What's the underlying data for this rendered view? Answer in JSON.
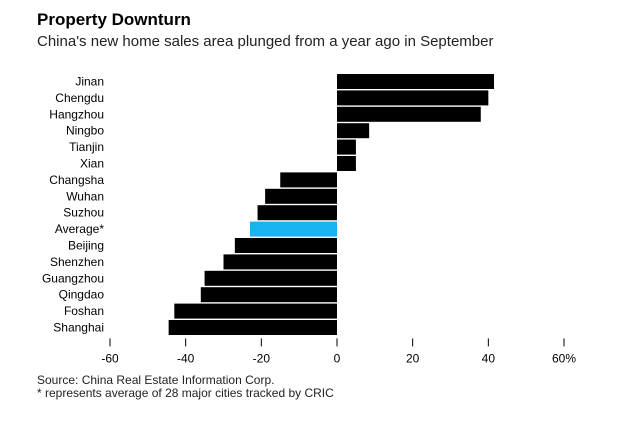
{
  "chart_data": {
    "type": "bar",
    "orientation": "horizontal",
    "title": "Property Downturn",
    "subtitle": "China's new home sales area plunged from a year ago in September",
    "categories": [
      "Jinan",
      "Chengdu",
      "Hangzhou",
      "Ningbo",
      "Tianjin",
      "Xian",
      "Changsha",
      "Wuhan",
      "Suzhou",
      "Average*",
      "Beijing",
      "Shenzhen",
      "Guangzhou",
      "Qingdao",
      "Foshan",
      "Shanghai"
    ],
    "values": [
      41.5,
      40,
      38,
      8.5,
      5,
      5,
      -15,
      -19,
      -21,
      -23,
      -27,
      -30,
      -35,
      -36,
      -43,
      -44.5
    ],
    "highlight": "Average*",
    "xlim": [
      -60,
      60
    ],
    "xticks": [
      -60,
      -40,
      -20,
      0,
      20,
      40,
      60
    ],
    "xtick_labels": [
      "-60",
      "-40",
      "-20",
      "0",
      "20",
      "40",
      "60%"
    ],
    "colors": {
      "bar": "#000000",
      "highlight": "#1ab2f0"
    }
  },
  "footer": {
    "source": "Source: China Real Estate Information Corp.",
    "note": "* represents average of 28 major cities tracked by CRIC"
  }
}
